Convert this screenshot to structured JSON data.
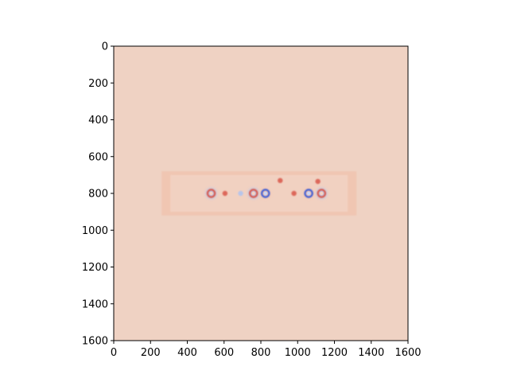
{
  "chart_data": {
    "type": "heatmap",
    "title": "",
    "xlabel": "",
    "ylabel": "",
    "xlim": [
      0,
      1600
    ],
    "ylim": [
      1600,
      0
    ],
    "xticks": [
      0,
      200,
      400,
      600,
      800,
      1000,
      1200,
      1400,
      1600
    ],
    "yticks": [
      0,
      200,
      400,
      600,
      800,
      1000,
      1200,
      1400,
      1600
    ],
    "colormap": "coolwarm",
    "colors": {
      "background": "#efd2c3",
      "band": "#f0c6b2",
      "band_light": "#f3d9cc",
      "warm_spot": "#d9564a",
      "cool_spot": "#3b5bd6",
      "cool_light": "#aec3f2",
      "axis": "#000000"
    },
    "features": [
      {
        "kind": "band",
        "x_range": [
          260,
          1320
        ],
        "y_range": [
          680,
          920
        ]
      },
      {
        "kind": "ring",
        "x": 530,
        "y": 800,
        "sign": "warm"
      },
      {
        "kind": "ring",
        "x": 760,
        "y": 800,
        "sign": "warm"
      },
      {
        "kind": "ring",
        "x": 825,
        "y": 800,
        "sign": "cool"
      },
      {
        "kind": "ring",
        "x": 1060,
        "y": 800,
        "sign": "cool"
      },
      {
        "kind": "ring",
        "x": 1130,
        "y": 800,
        "sign": "warm"
      },
      {
        "kind": "spot",
        "x": 605,
        "y": 800,
        "sign": "warm"
      },
      {
        "kind": "spot",
        "x": 690,
        "y": 800,
        "sign": "cool"
      },
      {
        "kind": "spot",
        "x": 905,
        "y": 730,
        "sign": "warm"
      },
      {
        "kind": "spot",
        "x": 980,
        "y": 800,
        "sign": "warm"
      },
      {
        "kind": "spot",
        "x": 1110,
        "y": 735,
        "sign": "warm"
      }
    ]
  }
}
